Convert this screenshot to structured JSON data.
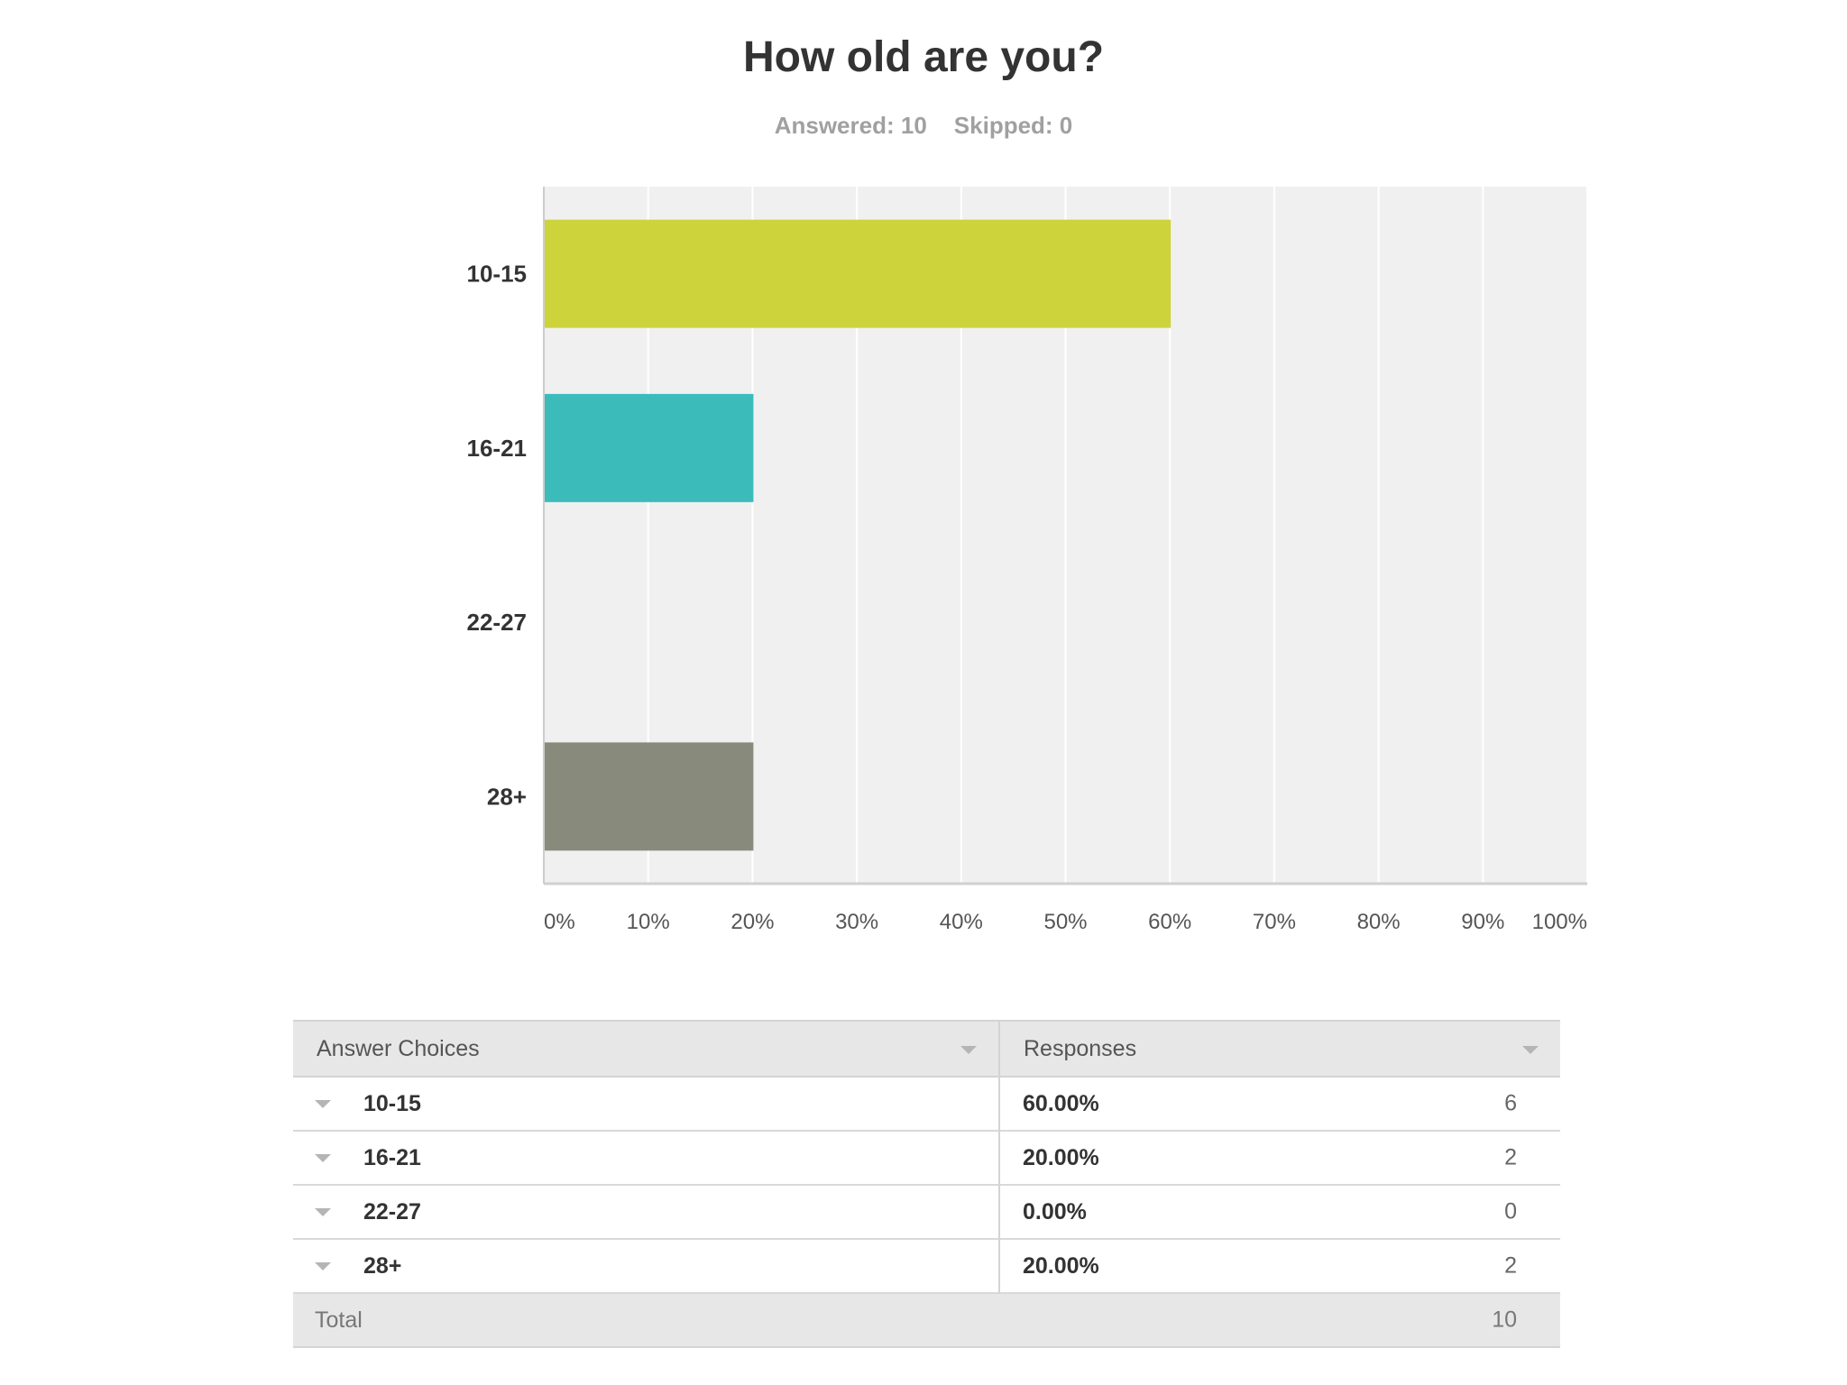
{
  "question": {
    "title": "How old are you?",
    "answered": "Answered: 10",
    "skipped": "Skipped: 0"
  },
  "chart_data": {
    "type": "bar",
    "orientation": "horizontal",
    "categories": [
      "10-15",
      "16-21",
      "22-27",
      "28+"
    ],
    "values": [
      60,
      20,
      0,
      20
    ],
    "colors": [
      "#cdd33b",
      "#3bbcbb",
      "#f0f0f0",
      "#888a7b"
    ],
    "xlim": [
      0,
      100
    ],
    "xticks": [
      "0%",
      "10%",
      "20%",
      "30%",
      "40%",
      "50%",
      "60%",
      "70%",
      "80%",
      "90%",
      "100%"
    ],
    "title": "How old are you?",
    "grid": true,
    "plot_background": "#f0f0f0"
  },
  "table": {
    "headers": {
      "choices": "Answer Choices",
      "responses": "Responses"
    },
    "rows": [
      {
        "choice": "10-15",
        "percent": "60.00%",
        "count": "6"
      },
      {
        "choice": "16-21",
        "percent": "20.00%",
        "count": "2"
      },
      {
        "choice": "22-27",
        "percent": "0.00%",
        "count": "0"
      },
      {
        "choice": "28+",
        "percent": "20.00%",
        "count": "2"
      }
    ],
    "total_label": "Total",
    "total_count": "10"
  }
}
